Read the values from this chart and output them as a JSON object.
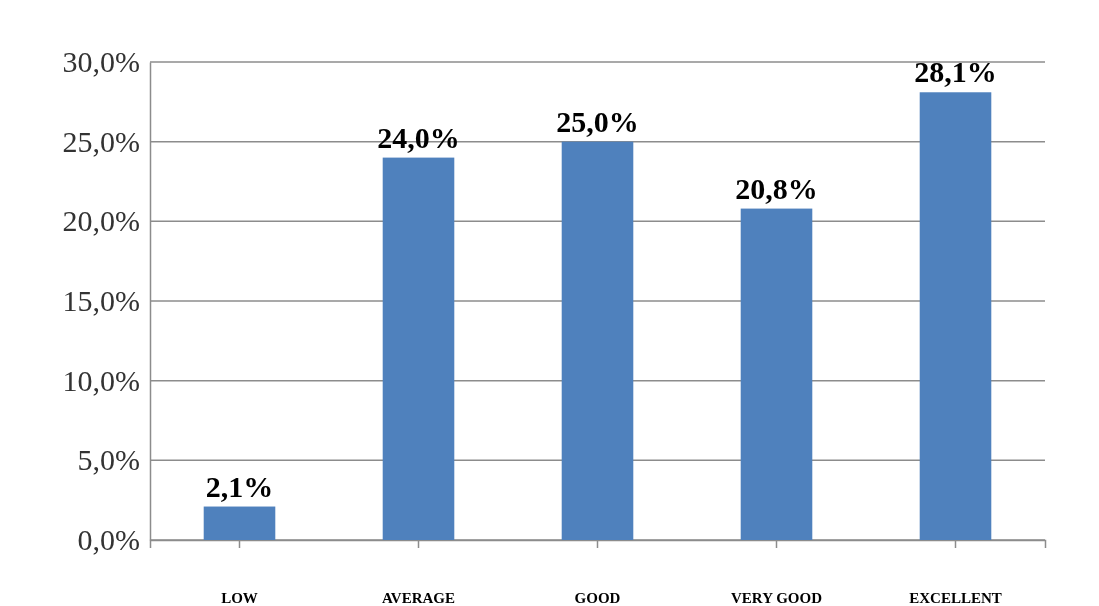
{
  "chart_data": {
    "type": "bar",
    "categories": [
      "LOW",
      "AVERAGE",
      "GOOD",
      "VERY GOOD",
      "EXCELLENT"
    ],
    "values": [
      2.1,
      24.0,
      25.0,
      20.8,
      28.1
    ],
    "color": "#4f81bd",
    "value_labels": [
      "2,1%",
      "24,0%",
      "25,0%",
      "20,8%",
      "28,1%"
    ],
    "ylim": [
      0,
      30
    ],
    "yticks": [
      {
        "value": 0,
        "label": "0,0%"
      },
      {
        "value": 5,
        "label": "5,0%"
      },
      {
        "value": 10,
        "label": "10,0%"
      },
      {
        "value": 15,
        "label": "15,0%"
      },
      {
        "value": 20,
        "label": "20,0%"
      },
      {
        "value": 25,
        "label": "25,0%"
      },
      {
        "value": 30,
        "label": "30,0%"
      }
    ],
    "grid": "y"
  }
}
